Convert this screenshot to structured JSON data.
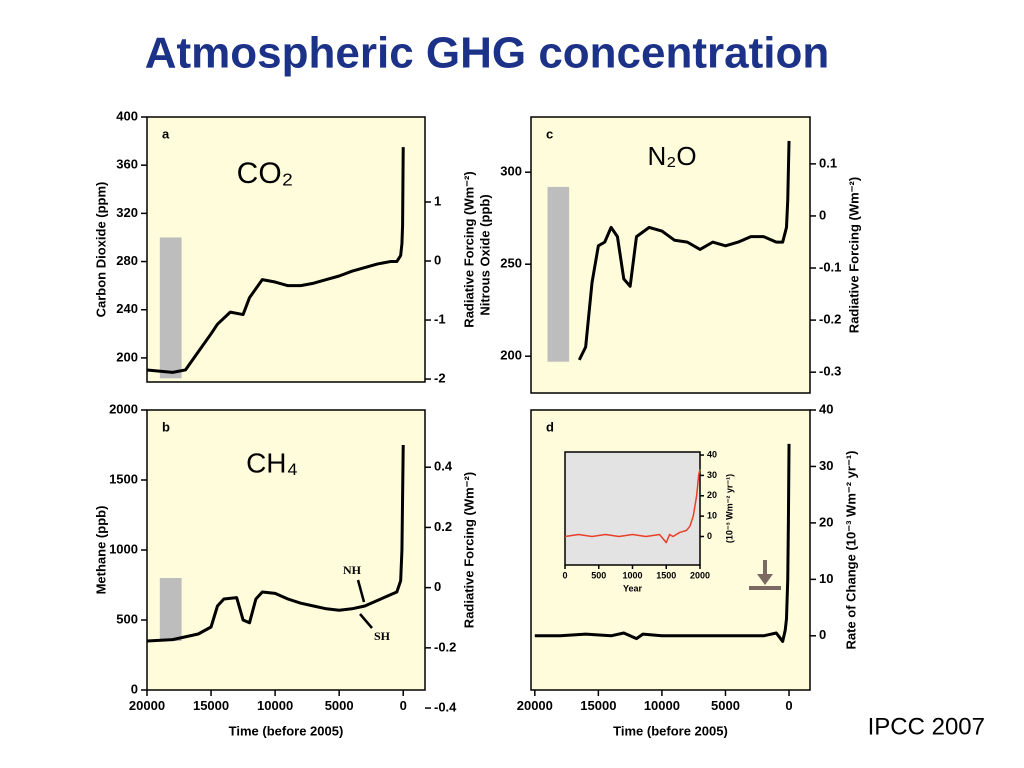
{
  "title": "Atmospheric GHG concentration",
  "source": "IPCC 2007",
  "chart_data": [
    {
      "type": "line",
      "panel": "a",
      "annotation": "CO₂",
      "ylabel": "Carbon Dioxide (ppm)",
      "y2label": "Radiative Forcing (Wm⁻²)",
      "xlim": [
        20000,
        -1700
      ],
      "ylim": [
        180,
        400
      ],
      "yticks": [
        200,
        240,
        280,
        320,
        360,
        400
      ],
      "y2lim": [
        -2.05,
        2.44
      ],
      "y2ticks": [
        1,
        0,
        -1,
        -2
      ],
      "range_bar": {
        "x": [
          19000,
          17300
        ],
        "y": [
          183,
          300
        ],
        "color": "#bdbdbd"
      },
      "series": [
        {
          "color": "#000000",
          "x": [
            20000,
            18000,
            17000,
            16000,
            15000,
            14500,
            13500,
            12500,
            12000,
            11000,
            10000,
            9000,
            8000,
            7000,
            6000,
            5000,
            4000,
            3000,
            2000,
            1000,
            500,
            200,
            100,
            50,
            0
          ],
          "values": [
            190,
            188,
            190,
            205,
            220,
            228,
            238,
            236,
            250,
            265,
            263,
            260,
            260,
            262,
            265,
            268,
            272,
            275,
            278,
            280,
            280,
            285,
            295,
            310,
            375
          ]
        }
      ]
    },
    {
      "type": "line",
      "panel": "c",
      "annotation": "N₂O",
      "ylabel": "Nitrous Oxide (ppb)",
      "y2label": "Radiative Forcing (Wm⁻²)",
      "xlim": [
        20300,
        -1650
      ],
      "ylim": [
        180,
        330
      ],
      "yticks": [
        200,
        250,
        300
      ],
      "y2lim": [
        -0.34,
        0.19
      ],
      "y2ticks": [
        0.1,
        0,
        -0.1,
        -0.2,
        -0.3
      ],
      "range_bar": {
        "x": [
          19000,
          17300
        ],
        "y": [
          197,
          292
        ],
        "color": "#bdbdbd"
      },
      "series": [
        {
          "color": "#000000",
          "x": [
            16500,
            16000,
            15500,
            15000,
            14500,
            14000,
            13500,
            13000,
            12500,
            12000,
            11000,
            10000,
            9000,
            8000,
            7000,
            6000,
            5000,
            4000,
            3000,
            2000,
            1000,
            500,
            200,
            100,
            0
          ],
          "values": [
            198,
            205,
            240,
            260,
            262,
            270,
            265,
            242,
            238,
            265,
            270,
            268,
            263,
            262,
            258,
            262,
            260,
            262,
            265,
            265,
            262,
            262,
            270,
            285,
            317
          ]
        }
      ]
    },
    {
      "type": "line",
      "panel": "b",
      "annotation": "CH₄",
      "labels": [
        "NH",
        "SH"
      ],
      "ylabel": "Methane (ppb)",
      "y2label": "Radiative Forcing (Wm⁻²)",
      "xlabel": "Time (before 2005)",
      "xlim": [
        20000,
        -1700
      ],
      "xticks": [
        20000,
        15000,
        10000,
        5000,
        0
      ],
      "ylim": [
        0,
        2000
      ],
      "yticks": [
        0,
        500,
        1000,
        1500,
        2000
      ],
      "y2lim": [
        -0.34,
        0.59
      ],
      "y2ticks": [
        0.4,
        0.2,
        0,
        -0.2,
        -0.4
      ],
      "range_bar": {
        "x": [
          19000,
          17300
        ],
        "y": [
          350,
          800
        ],
        "color": "#bdbdbd"
      },
      "series": [
        {
          "color": "#000000",
          "x": [
            20000,
            18000,
            16000,
            15000,
            14500,
            14000,
            13000,
            12500,
            12000,
            11500,
            11000,
            10000,
            9000,
            8000,
            7000,
            6000,
            5000,
            4000,
            3000,
            2000,
            1000,
            500,
            200,
            100,
            0
          ],
          "values": [
            350,
            360,
            400,
            450,
            600,
            650,
            660,
            500,
            480,
            650,
            700,
            690,
            650,
            620,
            600,
            580,
            570,
            580,
            600,
            640,
            680,
            700,
            780,
            1000,
            1750
          ]
        }
      ]
    },
    {
      "type": "line",
      "panel": "d",
      "yaxis_side": "right",
      "ylabel": "Rate of Change (10⁻³ Wm⁻² yr⁻¹)",
      "xlabel": "Time (before 2005)",
      "xlim": [
        20300,
        -1650
      ],
      "xticks": [
        20000,
        15000,
        10000,
        5000,
        0
      ],
      "ylim": [
        -9.6,
        40
      ],
      "yticks": [
        0,
        10,
        20,
        30,
        40
      ],
      "series": [
        {
          "color": "#000000",
          "x": [
            20000,
            18000,
            16000,
            14000,
            13000,
            12000,
            11500,
            10000,
            8000,
            6000,
            4000,
            2000,
            1000,
            500,
            300,
            200,
            100,
            50,
            0
          ],
          "values": [
            0,
            0,
            0.3,
            0,
            0.5,
            -0.5,
            0.3,
            0,
            0,
            0,
            0,
            0,
            0.5,
            -1,
            1,
            3,
            10,
            20,
            34
          ]
        }
      ]
    },
    {
      "type": "line",
      "yaxis_side": "right",
      "background": "#e3e3e3",
      "ylabel": "(10⁻³ Wm⁻² yr⁻¹)",
      "xlabel": "Year",
      "xlim": [
        0,
        2000
      ],
      "xticks": [
        0,
        500,
        1000,
        1500,
        2000
      ],
      "ylim": [
        -14,
        41.5
      ],
      "yticks": [
        0,
        10,
        20,
        30,
        40
      ],
      "series": [
        {
          "color": "#e8402a",
          "x": [
            0,
            200,
            400,
            600,
            800,
            1000,
            1200,
            1400,
            1500,
            1550,
            1600,
            1700,
            1800,
            1850,
            1900,
            1950,
            1980,
            2000
          ],
          "values": [
            0,
            1,
            0,
            1,
            0,
            1,
            0,
            1,
            -3,
            1,
            0,
            2,
            3,
            5,
            10,
            20,
            30,
            33
          ]
        }
      ]
    }
  ]
}
